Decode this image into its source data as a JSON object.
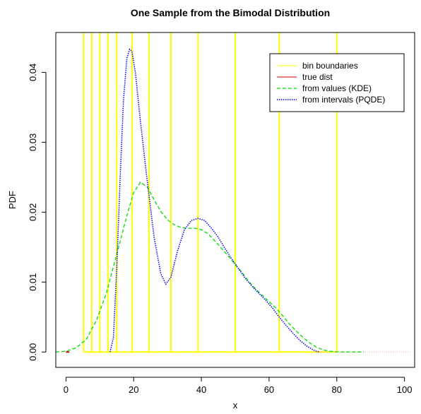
{
  "chart_data": {
    "type": "line",
    "title": "One Sample from the Bimodal Distribution",
    "xlabel": "x",
    "ylabel": "PDF",
    "xlim": [
      -3,
      103
    ],
    "ylim": [
      -0.0022,
      0.0457
    ],
    "x_ticks": [
      "0",
      "20",
      "40",
      "60",
      "80",
      "100"
    ],
    "x_tick_values": [
      0,
      20,
      40,
      60,
      80,
      100
    ],
    "y_ticks": [
      "0.00",
      "0.01",
      "0.02",
      "0.03",
      "0.04"
    ],
    "y_tick_values": [
      0,
      0.01,
      0.02,
      0.03,
      0.04
    ],
    "grid": false,
    "legend_position": "top-right",
    "bin_boundaries": [
      5.2,
      7.6,
      10.0,
      12.4,
      15.0,
      19.5,
      24.5,
      31.0,
      39.0,
      50.0,
      63.0,
      80.0
    ],
    "series": [
      {
        "name": "bin boundaries",
        "color": "#ffff00",
        "style": "solid"
      },
      {
        "name": "true dist",
        "color": "#cc0000",
        "style": "solid",
        "x": [
          0,
          1
        ],
        "y": [
          0,
          0
        ]
      },
      {
        "name": "from values (KDE)",
        "color": "#00dd00",
        "style": "dashed",
        "x": [
          -3,
          0,
          3,
          6,
          9,
          12,
          15,
          18,
          20,
          22,
          24,
          26,
          28,
          30,
          32,
          34,
          36,
          38,
          40,
          42,
          44,
          46,
          48,
          50,
          52,
          54,
          56,
          58,
          60,
          62,
          64,
          66,
          68,
          70,
          72,
          74,
          76,
          78,
          80,
          82,
          84,
          86,
          88
        ],
        "y": [
          0,
          0.0001,
          0.0006,
          0.0018,
          0.0045,
          0.0085,
          0.014,
          0.0195,
          0.0228,
          0.0243,
          0.0236,
          0.0218,
          0.0201,
          0.0189,
          0.0182,
          0.0178,
          0.0177,
          0.0177,
          0.0175,
          0.0169,
          0.0159,
          0.0148,
          0.0137,
          0.0125,
          0.0114,
          0.0101,
          0.009,
          0.0081,
          0.0072,
          0.0063,
          0.0052,
          0.004,
          0.003,
          0.0021,
          0.0013,
          0.0007,
          0.0003,
          0.0001,
          2e-05,
          0,
          0,
          0,
          0
        ]
      },
      {
        "name": "from intervals (PQDE)",
        "color": "#0000ff",
        "style": "dotted",
        "x": [
          13,
          14,
          15,
          16,
          17,
          18,
          18.8,
          19.5,
          20.5,
          22,
          24,
          26,
          28,
          29.5,
          31,
          33,
          35,
          37,
          39,
          41,
          43,
          45,
          47,
          49,
          51,
          53,
          55,
          57,
          59,
          61,
          63,
          65,
          67,
          69,
          71,
          73,
          74,
          75
        ],
        "y": [
          0,
          0.002,
          0.012,
          0.025,
          0.036,
          0.042,
          0.0433,
          0.043,
          0.04,
          0.033,
          0.0245,
          0.0165,
          0.0112,
          0.0097,
          0.0107,
          0.0145,
          0.0175,
          0.0188,
          0.0191,
          0.0188,
          0.0177,
          0.0164,
          0.0148,
          0.0133,
          0.0119,
          0.0105,
          0.0094,
          0.0084,
          0.0074,
          0.0063,
          0.005,
          0.0038,
          0.0027,
          0.0017,
          0.0009,
          0.0003,
          0.0001,
          0
        ]
      }
    ],
    "true_dist_dotted_x": [
      74,
      102
    ],
    "true_dist_dotted_color": "#ff9999"
  }
}
